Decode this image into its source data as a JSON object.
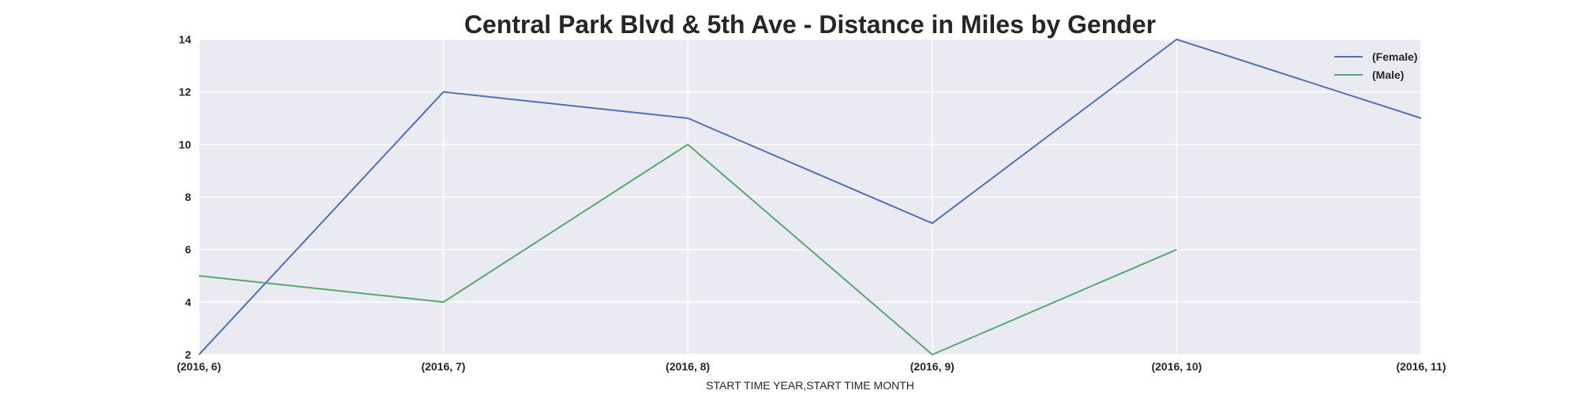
{
  "chart_data": {
    "type": "line",
    "title": "Central Park Blvd & 5th Ave - Distance in Miles by Gender",
    "xlabel": "START TIME YEAR,START TIME MONTH",
    "ylabel": "",
    "categories": [
      "(2016, 6)",
      "(2016, 7)",
      "(2016, 8)",
      "(2016, 9)",
      "(2016, 10)",
      "(2016, 11)"
    ],
    "yticks": [
      "2",
      "4",
      "6",
      "8",
      "10",
      "12",
      "14"
    ],
    "ylim": [
      2,
      14
    ],
    "grid": true,
    "legend_position": "top-right",
    "series": [
      {
        "name": "(Female)",
        "color": "#4c72b0",
        "values": [
          2,
          12,
          11,
          7,
          14,
          11
        ]
      },
      {
        "name": "(Male)",
        "color": "#55a868",
        "values": [
          5,
          4,
          10,
          2,
          6,
          null
        ]
      }
    ],
    "colors": {
      "plot_background": "#eaeaf2",
      "grid": "#ffffff",
      "text": "#262626"
    }
  }
}
